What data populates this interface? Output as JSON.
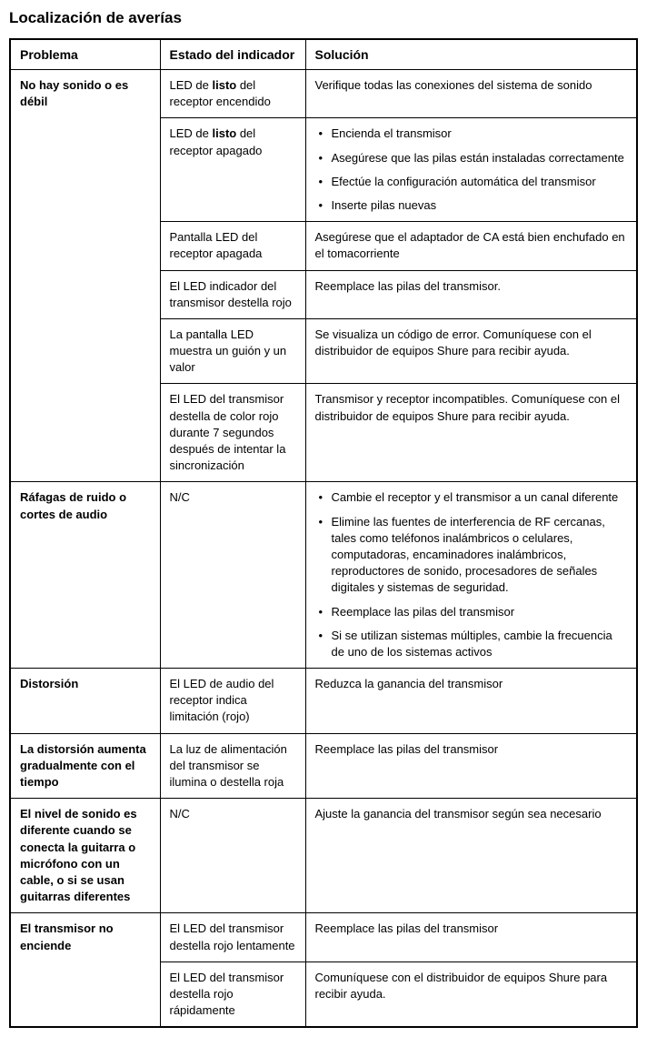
{
  "title": "Localización de averías",
  "headers": {
    "problema": "Problema",
    "estado": "Estado del indicador",
    "solucion": "Solución"
  },
  "rows": {
    "r1_problem": "No hay sonido o es débil",
    "r1_status_pre": "LED de ",
    "r1_status_bold": "listo",
    "r1_status_post": " del receptor encendido",
    "r1_solution": "Verifique todas las conexiones del sistema de sonido",
    "r2_status_pre": "LED de ",
    "r2_status_bold": "listo",
    "r2_status_post": " del receptor apagado",
    "r2_sol_1": "Encienda el transmisor",
    "r2_sol_2": "Asegúrese que las pilas están instaladas correctamente",
    "r2_sol_3": "Efectúe la configuración automática del transmisor",
    "r2_sol_4": "Inserte pilas nuevas",
    "r3_status": "Pantalla LED del receptor apagada",
    "r3_solution": "Asegúrese que el adaptador de CA está bien enchufado en el tomacorriente",
    "r4_status": "El LED indicador del transmisor destella rojo",
    "r4_solution": "Reemplace las pilas del transmisor.",
    "r5_status": "La pantalla LED muestra un guión y un valor",
    "r5_solution": "Se visualiza un código de error. Comuníquese con el distribuidor de equipos Shure para recibir ayuda.",
    "r6_status": "El LED del transmisor destella de color rojo durante 7 segundos después de intentar la sincronización",
    "r6_solution": "Transmisor y receptor incompatibles.  Comuníquese con el distribuidor de equipos Shure para recibir ayuda.",
    "r7_problem": "Ráfagas de ruido o cortes de audio",
    "r7_status": "N/C",
    "r7_sol_1": "Cambie el receptor y el transmisor a un canal diferente",
    "r7_sol_2": "Elimine las fuentes de interferencia de RF cercanas, tales como teléfonos inalámbricos o celulares, computadoras, encaminadores inalámbricos, reproductores de sonido, procesadores de señales digitales y sistemas de seguridad.",
    "r7_sol_3": "Reemplace las pilas del transmisor",
    "r7_sol_4": "Si se utilizan sistemas múltiples, cambie la frecuencia de uno de los sistemas activos",
    "r8_problem": "Distorsión",
    "r8_status": "El LED de audio del receptor indica limitación (rojo)",
    "r8_solution": "Reduzca la ganancia del transmisor",
    "r9_problem": "La distorsión aumenta gradualmente con el tiempo",
    "r9_status": "La luz de alimentación del transmisor se ilumina o destella roja",
    "r9_solution": "Reemplace las pilas del transmisor",
    "r10_problem": "El nivel de sonido es diferente cuando se conecta la guitarra o micrófono con un cable, o si se usan guitarras diferentes",
    "r10_status": "N/C",
    "r10_solution": "Ajuste la ganancia del transmisor según sea necesario",
    "r11_problem": "El transmisor no enciende",
    "r11_status": "El LED del transmisor destella rojo lentamente",
    "r11_solution": "Reemplace las pilas del transmisor",
    "r12_status": "El LED del transmisor destella rojo rápidamente",
    "r12_solution": "Comuníquese con el distribuidor de equipos Shure para recibir ayuda."
  }
}
